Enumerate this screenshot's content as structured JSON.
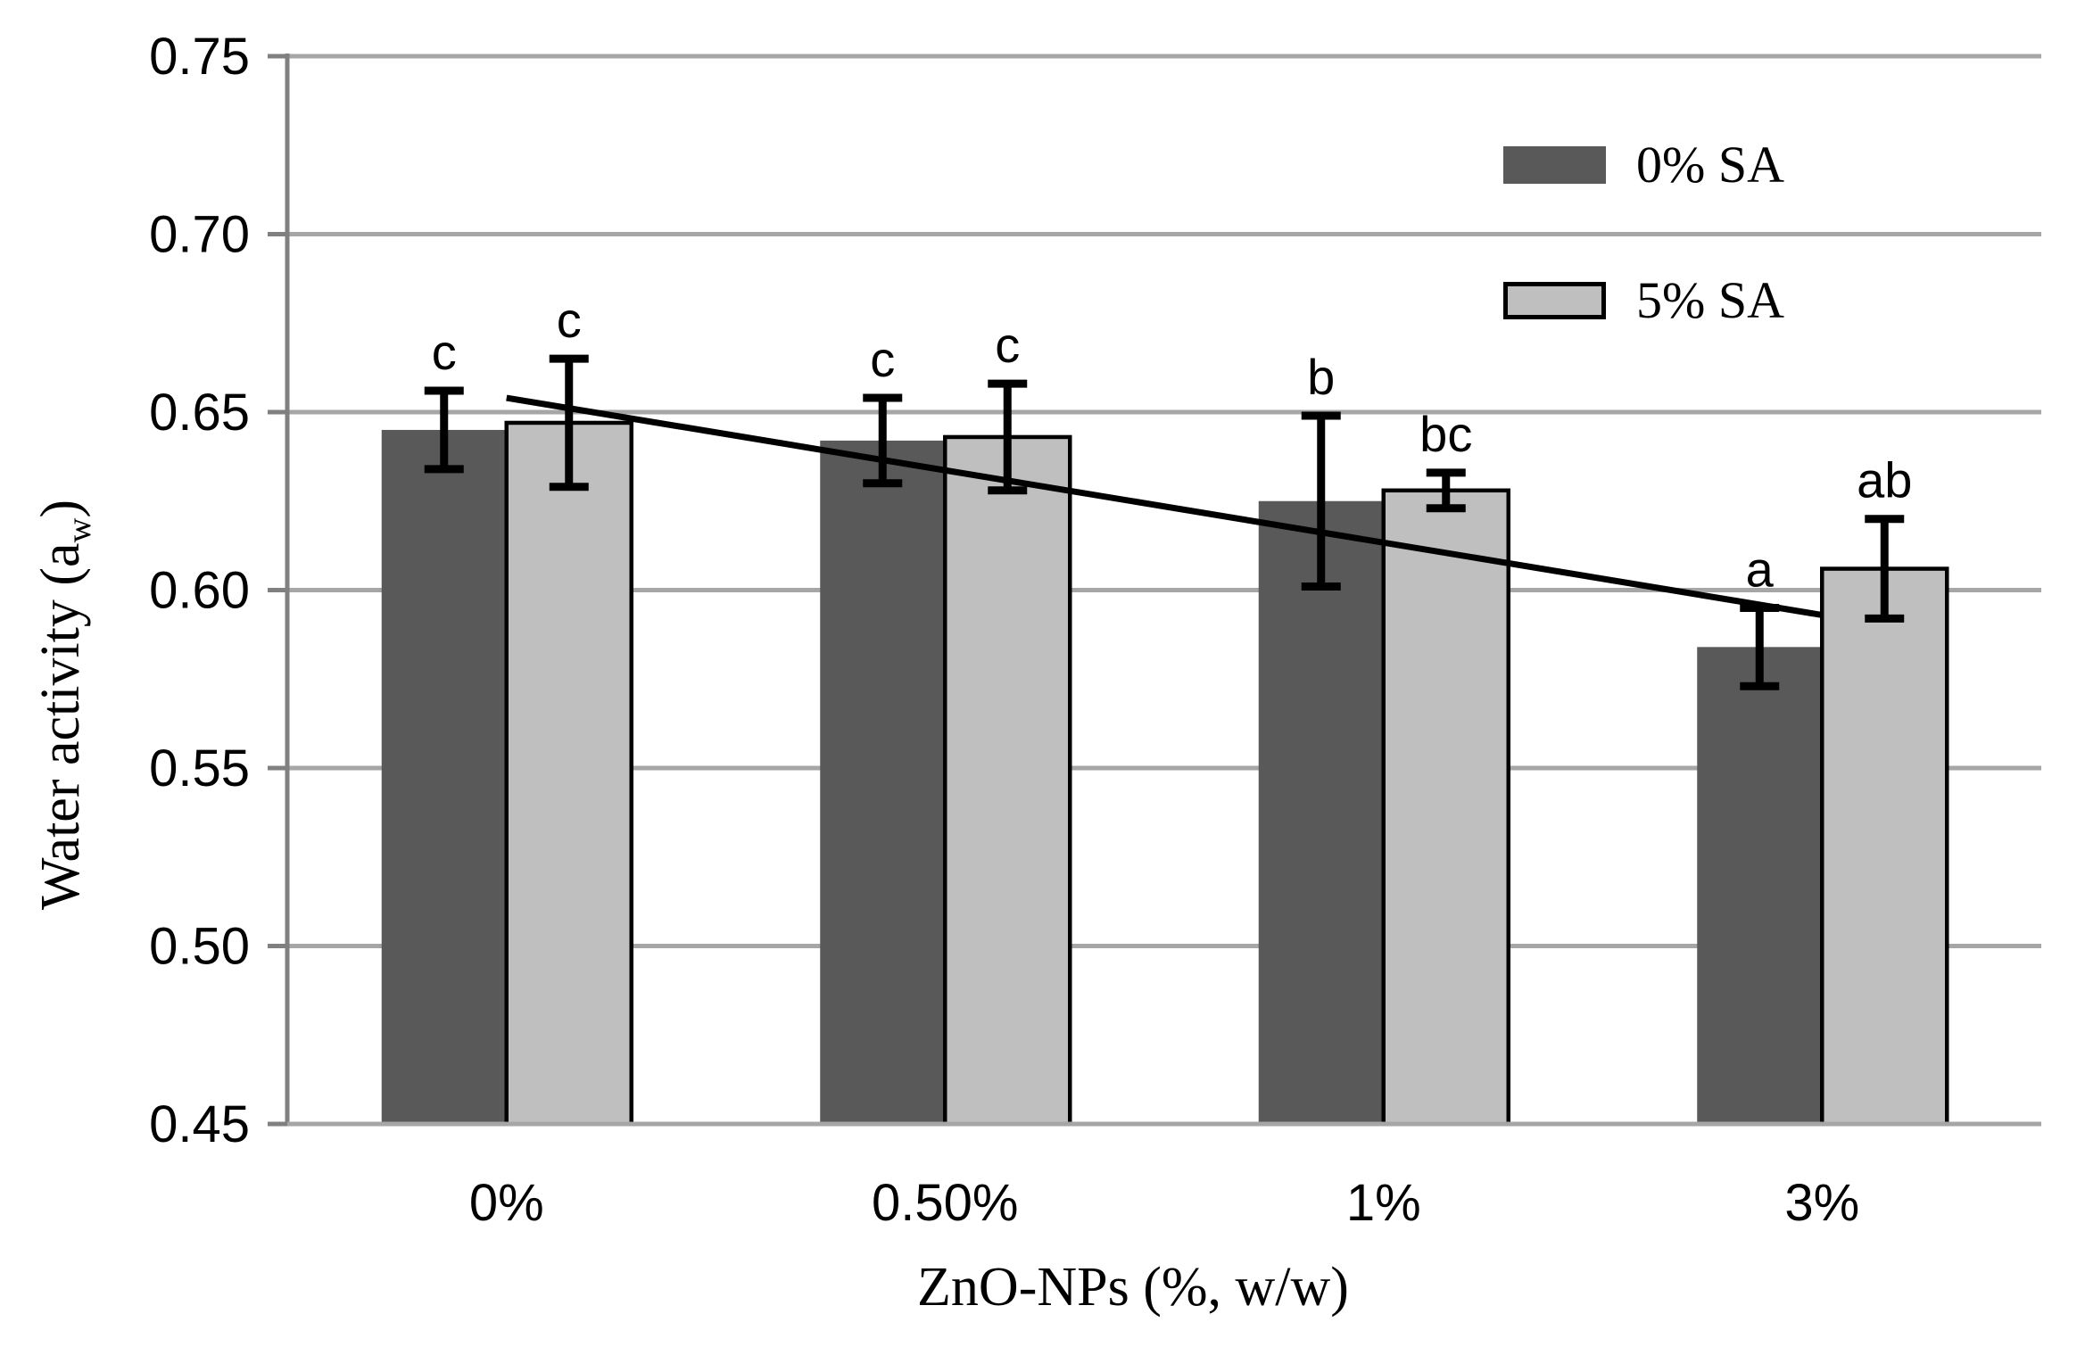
{
  "chart_data": {
    "type": "bar",
    "title": "",
    "categories": [
      "0%",
      "0.50%",
      "1%",
      "3%"
    ],
    "series": [
      {
        "name": "0% SA",
        "color": "#595959",
        "border": null,
        "values": [
          0.645,
          0.642,
          0.625,
          0.584
        ],
        "errors": [
          0.011,
          0.012,
          0.024,
          0.011
        ],
        "sig_letters": [
          "c",
          "c",
          "b",
          "a"
        ]
      },
      {
        "name": "5% SA",
        "color": "#BFBFBF",
        "border": "#000000",
        "values": [
          0.647,
          0.643,
          0.628,
          0.606
        ],
        "errors": [
          0.018,
          0.015,
          0.005,
          0.014
        ],
        "sig_letters": [
          "c",
          "c",
          "bc",
          "ab"
        ]
      }
    ],
    "trendline": {
      "start_category": 0,
      "end_category": 3,
      "start_value": 0.654,
      "end_value": 0.593,
      "color": "#000000"
    },
    "xlabel": "ZnO-NPs (%, w/w)",
    "ylabel": {
      "prefix": "Water activity (a",
      "sub": "w",
      "suffix": ")"
    },
    "ylim": [
      0.45,
      0.75
    ],
    "ytick_step": 0.05,
    "yticks": [
      "0.75",
      "0.70",
      "0.65",
      "0.60",
      "0.55",
      "0.50",
      "0.45"
    ],
    "grid": true,
    "legend_position": "upper-right",
    "colors": {
      "gridline": "#A6A6A6",
      "axis": "#808080",
      "error_bar": "#000000",
      "text": "#000000",
      "background": "#FFFFFF"
    }
  }
}
